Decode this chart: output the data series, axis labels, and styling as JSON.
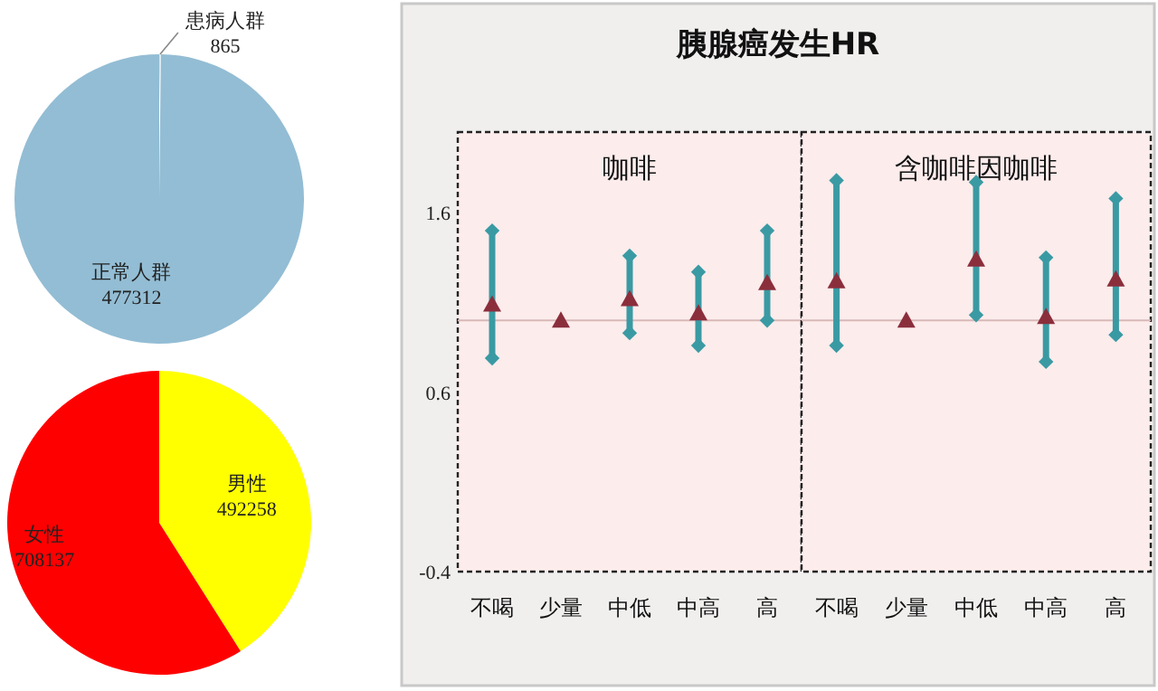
{
  "chart_data": [
    {
      "type": "pie",
      "categories": [
        "患病人群",
        "正常人群"
      ],
      "values": [
        865,
        477312
      ],
      "colors": [
        "#93bdd4",
        "#93bdd4"
      ],
      "data_labels": true
    },
    {
      "type": "pie",
      "categories": [
        "男性",
        "女性"
      ],
      "values": [
        492258,
        708137
      ],
      "colors": [
        "#ffff00",
        "#ff0000"
      ],
      "data_labels": true
    },
    {
      "type": "scatter",
      "title": "胰腺癌发生HR",
      "subtitle": "咖啡",
      "categories": [
        "不喝",
        "少量",
        "中低",
        "中高",
        "高"
      ],
      "ylim": [
        -0.4,
        2.05
      ],
      "yticks": [
        1.6,
        0.6,
        -0.4
      ],
      "marker": "triangle",
      "series": [
        {
          "color": "#8b2e3c",
          "values": [
            1.09,
            1.0,
            1.12,
            1.04,
            1.21
          ],
          "errors": [
            [
              0.79,
              1.5
            ],
            null,
            [
              0.93,
              1.36
            ],
            [
              0.86,
              1.27
            ],
            [
              1.0,
              1.5
            ]
          ]
        }
      ],
      "ref_lines": [
        {
          "axis": "y",
          "value": 1.0,
          "color": "#d9b8b8"
        }
      ]
    },
    {
      "type": "scatter",
      "subtitle": "含咖啡因咖啡",
      "categories": [
        "不喝",
        "少量",
        "中低",
        "中高",
        "高"
      ],
      "ylim": [
        -0.4,
        2.05
      ],
      "tick_labels": "x",
      "marker": "triangle",
      "series": [
        {
          "color": "#8b2e3c",
          "values": [
            1.22,
            1.0,
            1.34,
            1.02,
            1.23
          ],
          "errors": [
            [
              0.86,
              1.78
            ],
            null,
            [
              1.03,
              1.77
            ],
            [
              0.77,
              1.35
            ],
            [
              0.92,
              1.68
            ]
          ]
        }
      ],
      "ref_lines": [
        {
          "axis": "y",
          "value": 1.0,
          "color": "#d9b8b8"
        }
      ]
    }
  ]
}
